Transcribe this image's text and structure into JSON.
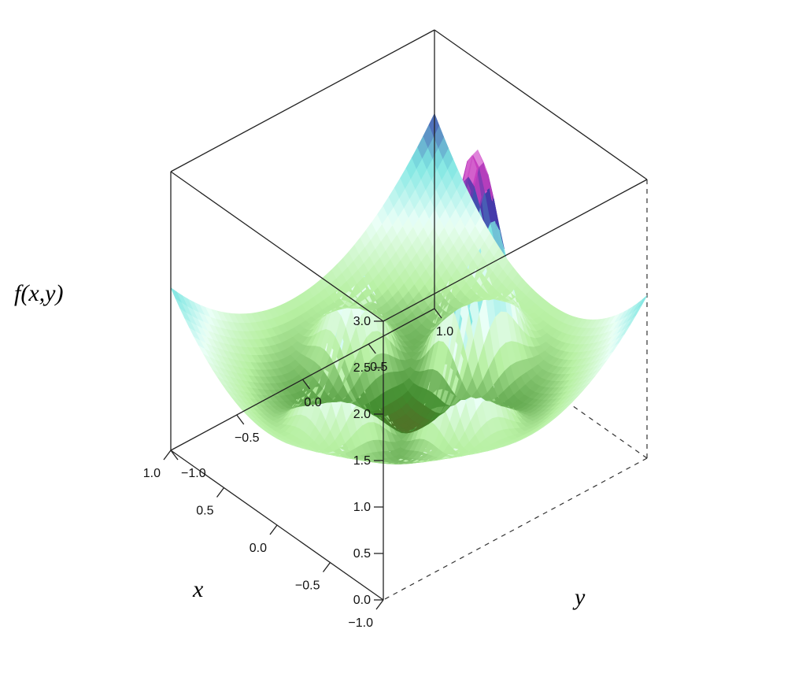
{
  "chart_data": {
    "type": "surface",
    "function_label": "f(x, y)",
    "xlabel": "x",
    "ylabel": "y",
    "zlabel": "f(x,y)",
    "xlim": [
      -1.0,
      1.0
    ],
    "ylim": [
      -1.0,
      1.0
    ],
    "zlim": [
      0.0,
      3.0
    ],
    "x_ticks": [
      "-1.0",
      "-0.5",
      "0.0",
      "0.5",
      "1.0"
    ],
    "y_ticks": [
      "-1.0",
      "-0.5",
      "0.0",
      "0.5",
      "1.0"
    ],
    "z_ticks": [
      "0.0",
      "0.5",
      "1.0",
      "1.5",
      "2.0",
      "2.5",
      "3.0"
    ],
    "surface_features": {
      "corner_values": {
        "x-1_y-1": 2.8,
        "x1_y-1": 2.2,
        "x-1_y1": 2.9,
        "x1_y1": 1.9
      },
      "peaks": [
        {
          "x": 0.0,
          "y": -0.5,
          "z": 2.3
        },
        {
          "x": 0.5,
          "y": 0.0,
          "z": 1.5
        },
        {
          "x": -0.5,
          "y": 0.0,
          "z": 2.4
        },
        {
          "x": 0.0,
          "y": 0.5,
          "z": 2.8
        }
      ],
      "minima_z": 0.1
    },
    "colormap": [
      "#7a3a1e",
      "#3f8a2c",
      "#b7f0a2",
      "#eafff7",
      "#7ee6e2",
      "#3a3aa8",
      "#c73fbf",
      "#f2b8ef"
    ]
  }
}
